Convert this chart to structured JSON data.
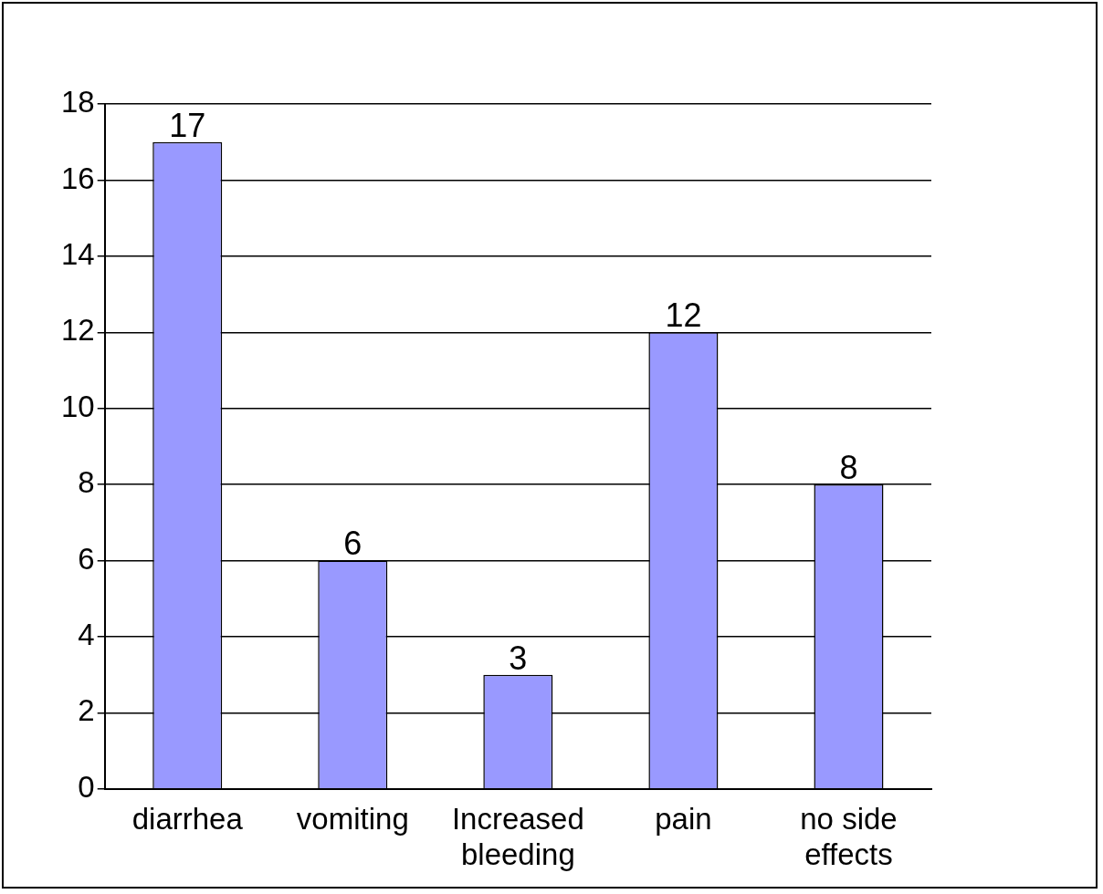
{
  "chart_data": {
    "type": "bar",
    "categories": [
      "diarrhea",
      "vomiting",
      "Increased bleeding",
      "pain",
      "no side effects"
    ],
    "values": [
      17,
      6,
      3,
      12,
      8
    ],
    "color": "#9999ff",
    "ylim": [
      0,
      18
    ],
    "yticks": [
      0,
      2,
      4,
      6,
      8,
      10,
      12,
      14,
      16,
      18
    ],
    "grid": "y",
    "data_labels": true,
    "legend": false
  }
}
